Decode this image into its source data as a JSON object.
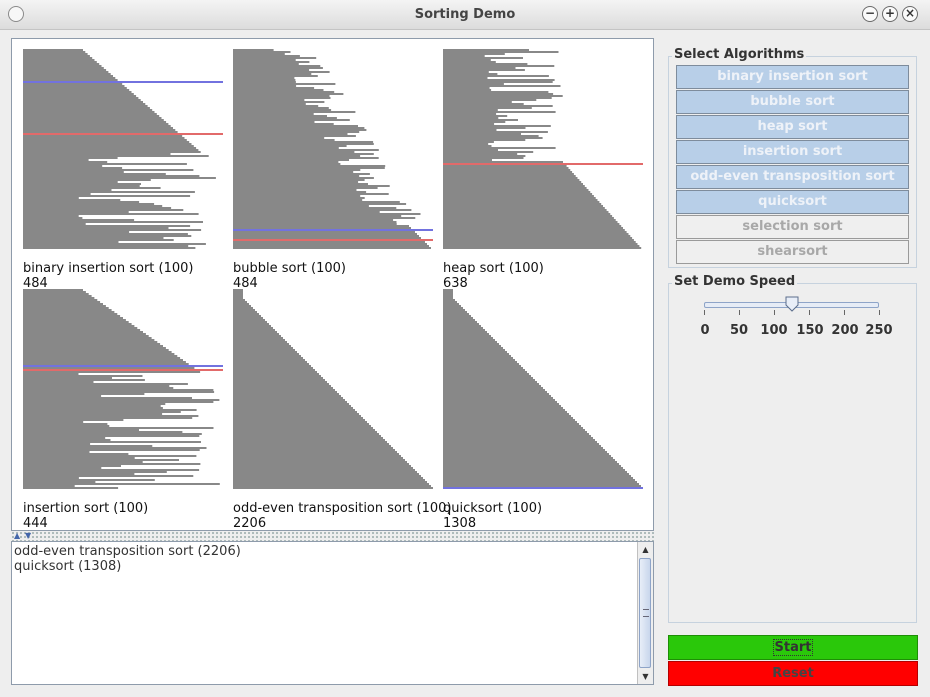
{
  "window": {
    "title": "Sorting Demo"
  },
  "colors": {
    "bars": "#111111",
    "compare": "#1d1dcc",
    "swap": "#d01010",
    "selected_algo": "#b8cfe8",
    "start": "#2ac80a",
    "reset": "#ff0000"
  },
  "panels": [
    {
      "name": "binary insertion sort (100)",
      "count": "484",
      "pattern": "partial",
      "sorted_prefix": 0.52,
      "markers": {
        "compare": 0.16,
        "swap": 0.42
      }
    },
    {
      "name": "bubble sort (100)",
      "count": "484",
      "pattern": "tail",
      "sorted_suffix": 0.12,
      "markers": {
        "compare": 0.9,
        "swap": 0.95
      }
    },
    {
      "name": "heap sort (100)",
      "count": "638",
      "pattern": "heap",
      "split": 0.57,
      "markers": {
        "swap": 0.57
      }
    },
    {
      "name": "insertion sort (100)",
      "count": "444",
      "pattern": "partial",
      "sorted_prefix": 0.42,
      "markers": {
        "compare": 0.38,
        "swap": 0.4
      }
    },
    {
      "name": "odd-even transposition sort (100)",
      "count": "2206",
      "pattern": "sorted",
      "markers": {}
    },
    {
      "name": "quicksort (100)",
      "count": "1308",
      "pattern": "sorted",
      "markers": {
        "compare": 0.99
      }
    }
  ],
  "log": [
    "odd-even transposition sort (2206)",
    "quicksort (1308)"
  ],
  "algorithms": {
    "title": "Select Algorithms",
    "items": [
      {
        "label": "binary insertion sort",
        "selected": true
      },
      {
        "label": "bubble sort",
        "selected": true
      },
      {
        "label": "heap sort",
        "selected": true
      },
      {
        "label": "insertion sort",
        "selected": true
      },
      {
        "label": "odd-even transposition sort",
        "selected": true
      },
      {
        "label": "quicksort",
        "selected": true
      },
      {
        "label": "selection sort",
        "selected": false
      },
      {
        "label": "shearsort",
        "selected": false
      }
    ]
  },
  "speed": {
    "title": "Set Demo Speed",
    "value": 125,
    "min": 0,
    "max": 250,
    "tick_labels": [
      "0",
      "50",
      "100",
      "150",
      "200",
      "250"
    ]
  },
  "actions": {
    "start": "Start",
    "reset": "Reset"
  },
  "icons": {
    "minimize": "minimize-icon",
    "maximize": "maximize-icon",
    "close": "close-icon",
    "window_menu": "window-menu-icon"
  }
}
